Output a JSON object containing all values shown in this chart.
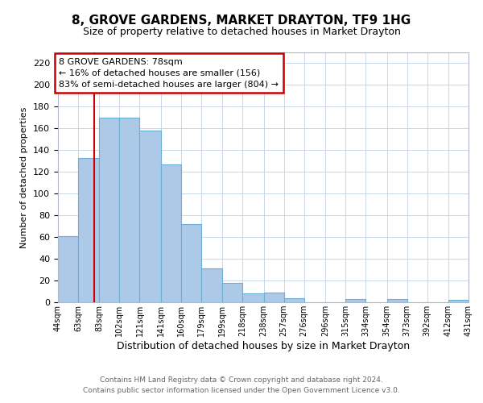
{
  "title": "8, GROVE GARDENS, MARKET DRAYTON, TF9 1HG",
  "subtitle": "Size of property relative to detached houses in Market Drayton",
  "xlabel": "Distribution of detached houses by size in Market Drayton",
  "ylabel": "Number of detached properties",
  "footer_line1": "Contains HM Land Registry data © Crown copyright and database right 2024.",
  "footer_line2": "Contains public sector information licensed under the Open Government Licence v3.0.",
  "bin_edges": [
    44,
    63,
    83,
    102,
    121,
    141,
    160,
    179,
    199,
    218,
    238,
    257,
    276,
    296,
    315,
    334,
    354,
    373,
    392,
    412,
    431
  ],
  "bin_labels": [
    "44sqm",
    "63sqm",
    "83sqm",
    "102sqm",
    "121sqm",
    "141sqm",
    "160sqm",
    "179sqm",
    "199sqm",
    "218sqm",
    "238sqm",
    "257sqm",
    "276sqm",
    "296sqm",
    "315sqm",
    "334sqm",
    "354sqm",
    "373sqm",
    "392sqm",
    "412sqm",
    "431sqm"
  ],
  "bar_heights": [
    61,
    133,
    170,
    170,
    158,
    127,
    72,
    31,
    18,
    8,
    9,
    4,
    0,
    0,
    3,
    0,
    3,
    0,
    0,
    2
  ],
  "bar_color": "#adc9e8",
  "bar_edge_color": "#6aaed6",
  "vline_x": 78,
  "vline_color": "#cc0000",
  "ylim": [
    0,
    230
  ],
  "yticks": [
    0,
    20,
    40,
    60,
    80,
    100,
    120,
    140,
    160,
    180,
    200,
    220
  ],
  "annotation_line1": "8 GROVE GARDENS: 78sqm",
  "annotation_line2": "← 16% of detached houses are smaller (156)",
  "annotation_line3": "83% of semi-detached houses are larger (804) →",
  "annotation_box_color": "#ffffff",
  "annotation_box_edge_color": "#cc0000",
  "background_color": "#ffffff",
  "grid_color": "#c8d8ea",
  "title_fontsize": 11,
  "subtitle_fontsize": 9,
  "ylabel_fontsize": 8,
  "xlabel_fontsize": 9
}
